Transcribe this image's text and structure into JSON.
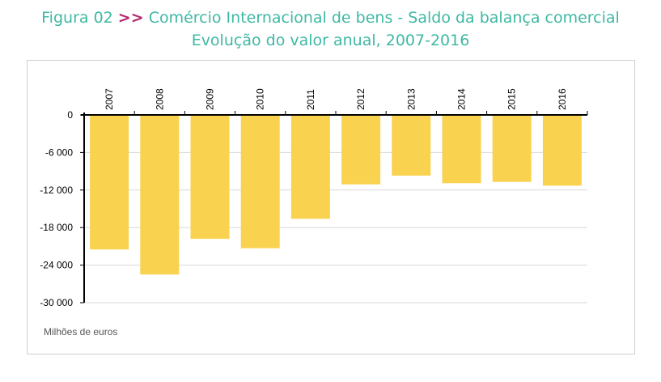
{
  "title": {
    "figure": "Figura 02",
    "arrows": ">>",
    "line1_rest": "Comércio Internacional de bens - Saldo da balança comercial",
    "line2": "Evolução do valor anual, 2007-2016"
  },
  "colors": {
    "bar": "#f9d24f",
    "title": "#3fb8a4",
    "arrows": "#b5286e",
    "grid": "#d9d9d9"
  },
  "chart_data": {
    "type": "bar",
    "categories": [
      "2007",
      "2008",
      "2009",
      "2010",
      "2011",
      "2012",
      "2013",
      "2014",
      "2015",
      "2016"
    ],
    "values": [
      -21500,
      -25500,
      -19800,
      -21300,
      -16600,
      -11100,
      -9700,
      -10900,
      -10700,
      -11300
    ],
    "ylim": [
      -30000,
      0
    ],
    "yticks": [
      0,
      -6000,
      -12000,
      -18000,
      -24000,
      -30000
    ],
    "ytick_labels": [
      "0",
      "-6 000",
      "-12 000",
      "-18 000",
      "-24 000",
      "-30 000"
    ],
    "unit_label": "Milhões de euros",
    "grid": true
  }
}
